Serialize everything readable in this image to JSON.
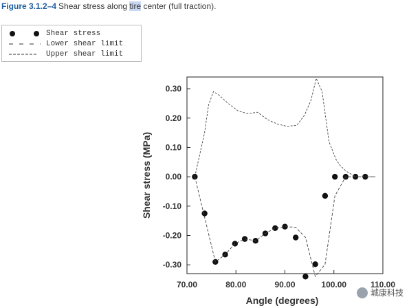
{
  "caption": {
    "figure_label": "Figure 3.1.2–4",
    "before": "Shear stress along ",
    "highlight": "tire",
    "after": " center (full traction)."
  },
  "legend": [
    {
      "symbol": "dots",
      "label": "Shear stress"
    },
    {
      "symbol": "long-dash",
      "label": "Lower shear limit"
    },
    {
      "symbol": "short-dash",
      "label": "Upper shear limit"
    }
  ],
  "chart_data": {
    "type": "line",
    "xlabel": "Angle (degrees)",
    "ylabel": "Shear stress (MPa)",
    "xlim": [
      70,
      110
    ],
    "ylim": [
      -0.33,
      0.34
    ],
    "xticks": [
      70,
      80,
      90,
      100,
      110
    ],
    "xtick_labels": [
      "70.00",
      "80.00",
      "90.00",
      "100.00",
      "110.00"
    ],
    "yticks": [
      -0.3,
      -0.2,
      -0.1,
      0.0,
      0.1,
      0.2,
      0.3
    ],
    "ytick_labels": [
      "-0.30",
      "-0.20",
      "-0.10",
      "0.00",
      "0.10",
      "0.20",
      "0.30"
    ],
    "series": [
      {
        "name": "Shear stress",
        "style": "markers",
        "x": [
          71.6,
          73.6,
          75.8,
          77.8,
          79.8,
          81.8,
          84.0,
          86.0,
          88.0,
          90.0,
          92.2,
          94.2,
          96.2,
          98.2,
          100.2,
          102.4,
          104.4,
          106.4
        ],
        "y": [
          0.0,
          -0.125,
          -0.29,
          -0.265,
          -0.228,
          -0.212,
          -0.218,
          -0.193,
          -0.175,
          -0.17,
          -0.207,
          -0.34,
          -0.298,
          -0.065,
          0.0,
          0.0,
          0.0,
          0.0
        ]
      },
      {
        "name": "Lower shear limit",
        "style": "dashed",
        "x": [
          71.6,
          75.8,
          77.8,
          79.8,
          81.8,
          84.0,
          86.0,
          88.0,
          90.0,
          92.2,
          94.2,
          96.2,
          98.2,
          100.2,
          102.4,
          104.4,
          106.4,
          108.5
        ],
        "y": [
          0.0,
          -0.29,
          -0.265,
          -0.228,
          -0.212,
          -0.218,
          -0.193,
          -0.175,
          -0.17,
          -0.172,
          -0.207,
          -0.34,
          -0.298,
          -0.065,
          0.0,
          0.0,
          0.0,
          0.0
        ]
      },
      {
        "name": "Upper shear limit",
        "style": "dashed",
        "x": [
          71.6,
          73.6,
          74.4,
          75.4,
          76.4,
          78.4,
          80.4,
          82.4,
          84.4,
          86.4,
          88.4,
          90.4,
          92.4,
          94.0,
          95.3,
          96.4,
          97.6,
          99.0,
          100.4,
          101.2,
          102.4,
          104.4,
          106.4,
          108.5
        ],
        "y": [
          0.0,
          0.15,
          0.245,
          0.29,
          0.28,
          0.25,
          0.225,
          0.215,
          0.22,
          0.195,
          0.18,
          0.172,
          0.175,
          0.21,
          0.26,
          0.335,
          0.29,
          0.12,
          0.06,
          0.04,
          0.02,
          0.0,
          0.0,
          0.0
        ]
      }
    ]
  },
  "watermark": {
    "text": "城康科技"
  }
}
